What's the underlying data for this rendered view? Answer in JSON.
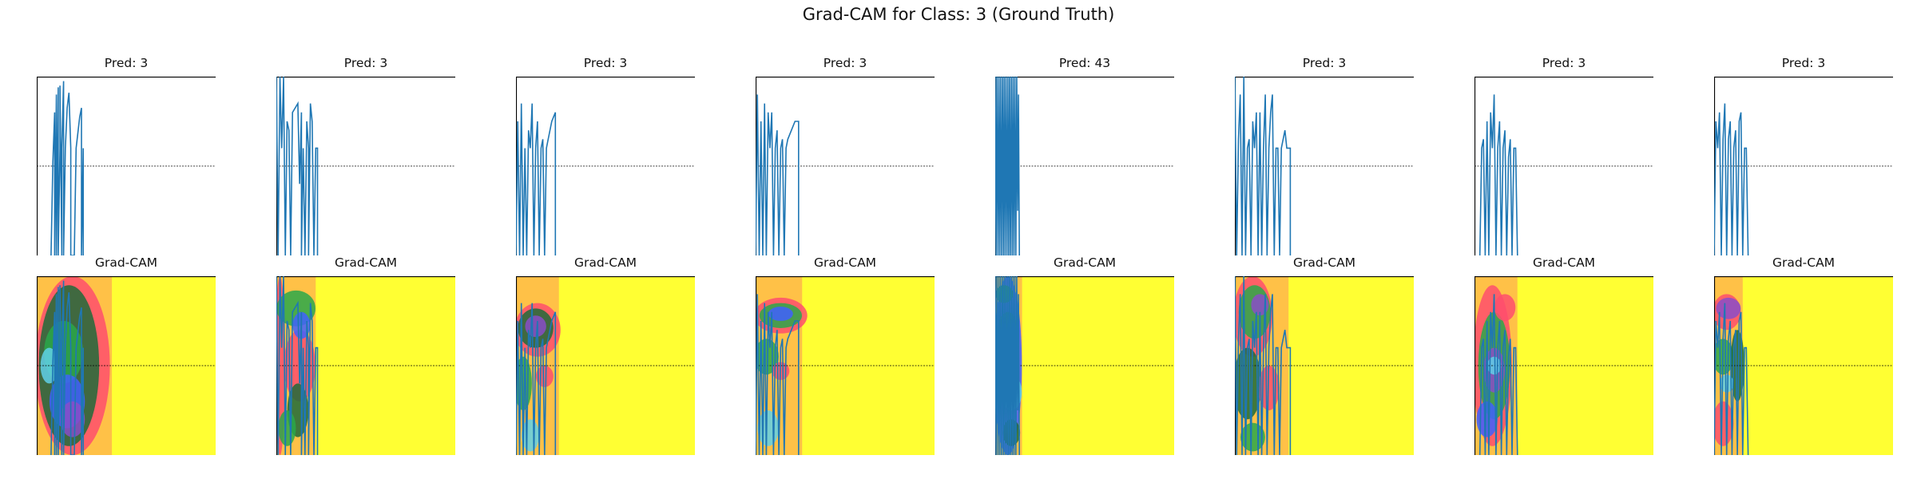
{
  "figure": {
    "title": "Grad-CAM for Class: 3 (Ground Truth)",
    "cam_label": "Grad-CAM"
  },
  "colors": {
    "signal": "#1f77b4",
    "cam_background": "#ffff33",
    "cam_hot": "#ff4d6d",
    "cam_green": "#2aa84a",
    "cam_dark_green": "#1f6b3a",
    "cam_blue": "#4060ff",
    "cam_cyan": "#60d0e8",
    "cam_purple": "#8a4ec8",
    "zero_line": "#000000"
  },
  "chart_data": [
    {
      "type": "line",
      "title": "Pred: 3",
      "xlim": [
        0,
        100
      ],
      "ylim": [
        -1,
        1
      ],
      "grid": false,
      "segments": [
        [
          8,
          -1,
          9,
          0.05,
          10,
          0.6,
          10,
          -1,
          11,
          0.8,
          11,
          -1,
          12,
          0.88,
          12,
          -1,
          13,
          0.2,
          13,
          0.9,
          14,
          -1,
          14,
          0.2,
          15,
          0.95,
          15,
          -1,
          16,
          0.2,
          17,
          0.65,
          18,
          0.82,
          19,
          0.2,
          19,
          -1,
          21,
          -1,
          22,
          0.2,
          24,
          0.55,
          25,
          0.65,
          25,
          -1,
          26,
          0.2,
          26,
          0.2,
          26,
          -1
        ]
      ],
      "cam": {
        "extent": 42,
        "blobs": [
          [
            0,
            0,
            40,
            100,
            "hot"
          ],
          [
            2,
            5,
            32,
            90,
            "dark"
          ],
          [
            5,
            25,
            20,
            35,
            "green"
          ],
          [
            8,
            55,
            18,
            30,
            "blue"
          ],
          [
            14,
            70,
            12,
            20,
            "purple"
          ],
          [
            3,
            40,
            8,
            20,
            "cyan"
          ]
        ]
      }
    },
    {
      "type": "line",
      "title": "Pred: 3",
      "xlim": [
        0,
        100
      ],
      "ylim": [
        -1,
        1
      ],
      "grid": false,
      "segments": [
        [
          0,
          1,
          1,
          -1,
          2,
          1,
          3,
          0.2,
          4,
          1,
          5,
          -1,
          6,
          0.5,
          7,
          0.4,
          8,
          -1,
          9,
          0.6,
          12,
          0.7,
          13,
          -0.2,
          14,
          0.6,
          14,
          -1,
          15,
          0.2,
          16,
          -1,
          17,
          0.5,
          18,
          0.2,
          18,
          -1,
          19,
          0.7,
          20,
          0.5,
          21,
          -1,
          22,
          0.2,
          23,
          0.2,
          23,
          -1
        ]
      ],
      "cam": {
        "extent": 22,
        "blobs": [
          [
            0,
            0,
            4,
            100,
            "hot"
          ],
          [
            1,
            8,
            20,
            20,
            "green"
          ],
          [
            5,
            30,
            16,
            40,
            "hot"
          ],
          [
            7,
            60,
            10,
            30,
            "dark"
          ],
          [
            10,
            20,
            8,
            15,
            "blue"
          ],
          [
            2,
            75,
            8,
            20,
            "green"
          ]
        ]
      }
    },
    {
      "type": "line",
      "title": "Pred: 3",
      "xlim": [
        0,
        100
      ],
      "ylim": [
        -1,
        1
      ],
      "grid": false,
      "segments": [
        [
          0,
          -1,
          1,
          0.5,
          2,
          -1,
          3,
          0.7,
          4,
          -1,
          5,
          0.2,
          6,
          -1,
          7,
          0.4,
          8,
          0.2,
          9,
          0.7,
          10,
          -1,
          11,
          0.2,
          12,
          0.5,
          13,
          -1,
          14,
          0.2,
          15,
          0.3,
          16,
          -1,
          17,
          0.2,
          18,
          0.3,
          20,
          0.5,
          22,
          0.6,
          22,
          -1
        ]
      ],
      "cam": {
        "extent": 24,
        "blobs": [
          [
            0,
            15,
            24,
            30,
            "hot"
          ],
          [
            2,
            18,
            18,
            22,
            "dark"
          ],
          [
            6,
            22,
            10,
            12,
            "purple"
          ],
          [
            0,
            45,
            8,
            30,
            "green"
          ],
          [
            12,
            50,
            8,
            12,
            "hot"
          ],
          [
            4,
            80,
            8,
            18,
            "cyan"
          ]
        ]
      }
    },
    {
      "type": "line",
      "title": "Pred: 3",
      "xlim": [
        0,
        100
      ],
      "ylim": [
        -1,
        1
      ],
      "grid": false,
      "segments": [
        [
          0,
          -1,
          1,
          0.8,
          2,
          -1,
          3,
          0.5,
          4,
          -1,
          5,
          0.7,
          6,
          -1,
          7,
          0.6,
          8,
          0.2,
          9,
          0.6,
          10,
          -1,
          11,
          0.2,
          12,
          0.4,
          13,
          -1,
          14,
          0.2,
          15,
          0.3,
          16,
          -1,
          17,
          0.2,
          18,
          0.3,
          20,
          0.4,
          22,
          0.5,
          24,
          0.5,
          24,
          -1
        ]
      ],
      "cam": {
        "extent": 26,
        "blobs": [
          [
            0,
            12,
            28,
            20,
            "hot"
          ],
          [
            3,
            15,
            22,
            14,
            "green"
          ],
          [
            8,
            17,
            12,
            8,
            "blue"
          ],
          [
            0,
            35,
            12,
            20,
            "green"
          ],
          [
            10,
            48,
            8,
            10,
            "hot"
          ],
          [
            2,
            75,
            10,
            20,
            "cyan"
          ]
        ]
      }
    },
    {
      "type": "line",
      "title": "Pred: 43",
      "xlim": [
        0,
        100
      ],
      "ylim": [
        -1,
        1
      ],
      "grid": false,
      "segments": [
        [
          0,
          1,
          0.5,
          -1,
          1,
          1,
          1.5,
          -1,
          2,
          1,
          2.5,
          -1,
          3,
          1,
          3.5,
          -1,
          4,
          1,
          4.5,
          -1,
          5,
          1,
          5.5,
          -1,
          6,
          1,
          6.5,
          -1,
          7,
          1,
          7.5,
          -1,
          8,
          1,
          8.5,
          -1,
          9,
          1,
          9.5,
          -1,
          10,
          1,
          10.5,
          -1,
          11,
          1,
          11.5,
          -1,
          12,
          1,
          12.5,
          -0.5,
          13,
          0.8,
          13.5,
          -1
        ]
      ],
      "cam": {
        "extent": 15,
        "blobs": [
          [
            0,
            0,
            14,
            100,
            "blue"
          ],
          [
            2,
            20,
            10,
            25,
            "green"
          ],
          [
            4,
            55,
            10,
            20,
            "cyan"
          ],
          [
            1,
            5,
            8,
            10,
            "green"
          ],
          [
            5,
            80,
            8,
            15,
            "dark"
          ],
          [
            6,
            35,
            6,
            15,
            "cyan"
          ]
        ]
      }
    },
    {
      "type": "line",
      "title": "Pred: 3",
      "xlim": [
        0,
        100
      ],
      "ylim": [
        -1,
        1
      ],
      "grid": false,
      "segments": [
        [
          0,
          1,
          1,
          -1,
          2,
          0.3,
          3,
          0.8,
          4,
          -1,
          5,
          1,
          6,
          -1,
          7,
          0.2,
          8,
          0.3,
          9,
          -1,
          10,
          0.5,
          11,
          0.2,
          12,
          0.6,
          13,
          -1,
          14,
          0.6,
          15,
          -1,
          16,
          0.2,
          17,
          0.8,
          18,
          -1,
          19,
          0.2,
          20,
          0.6,
          21,
          0.8,
          22,
          -1,
          23,
          0.2,
          24,
          0.2,
          25,
          -1,
          26,
          0.2,
          28,
          0.4,
          29,
          0.2,
          31,
          0.2,
          31,
          -1
        ]
      ],
      "cam": {
        "extent": 30,
        "blobs": [
          [
            0,
            0,
            20,
            45,
            "hot"
          ],
          [
            3,
            5,
            16,
            30,
            "green"
          ],
          [
            10,
            10,
            8,
            12,
            "purple"
          ],
          [
            0,
            40,
            14,
            40,
            "dark"
          ],
          [
            14,
            50,
            10,
            25,
            "hot"
          ],
          [
            4,
            82,
            12,
            16,
            "green"
          ]
        ]
      }
    },
    {
      "type": "line",
      "title": "Pred: 3",
      "xlim": [
        0,
        100
      ],
      "ylim": [
        -1,
        1
      ],
      "grid": false,
      "segments": [
        [
          3,
          -1,
          4,
          0.2,
          5,
          0.3,
          6,
          -1,
          7,
          0.5,
          8,
          -1,
          9,
          0.6,
          10,
          0.2,
          11,
          0.8,
          12,
          -1,
          13,
          0.2,
          14,
          0.5,
          15,
          -1,
          16,
          0.2,
          17,
          0.4,
          18,
          -1,
          19,
          0.1,
          20,
          0.3,
          21,
          -1,
          22,
          0.2,
          23,
          0.2,
          24,
          -1
        ]
      ],
      "cam": {
        "extent": 24,
        "blobs": [
          [
            0,
            5,
            20,
            90,
            "hot"
          ],
          [
            3,
            20,
            16,
            60,
            "green"
          ],
          [
            6,
            40,
            10,
            25,
            "purple"
          ],
          [
            2,
            70,
            10,
            20,
            "blue"
          ],
          [
            12,
            10,
            10,
            15,
            "hot"
          ],
          [
            8,
            45,
            6,
            10,
            "cyan"
          ]
        ]
      }
    },
    {
      "type": "line",
      "title": "Pred: 3",
      "xlim": [
        0,
        100
      ],
      "ylim": [
        -1,
        1
      ],
      "grid": false,
      "segments": [
        [
          0,
          -1,
          1,
          0.5,
          2,
          0.2,
          3,
          0.6,
          4,
          -1,
          5,
          0.3,
          6,
          0.7,
          7,
          -1,
          8,
          0.3,
          9,
          0.5,
          10,
          -1,
          11,
          0.2,
          12,
          0.4,
          13,
          -1,
          14,
          0.5,
          15,
          0.6,
          16,
          -1,
          17,
          0.2,
          18,
          0.2,
          19,
          -1
        ]
      ],
      "cam": {
        "extent": 16,
        "blobs": [
          [
            0,
            10,
            14,
            20,
            "hot"
          ],
          [
            2,
            12,
            12,
            12,
            "purple"
          ],
          [
            0,
            35,
            10,
            20,
            "green"
          ],
          [
            10,
            30,
            6,
            40,
            "dark"
          ],
          [
            0,
            70,
            10,
            25,
            "hot"
          ],
          [
            4,
            55,
            6,
            10,
            "cyan"
          ]
        ]
      }
    }
  ]
}
